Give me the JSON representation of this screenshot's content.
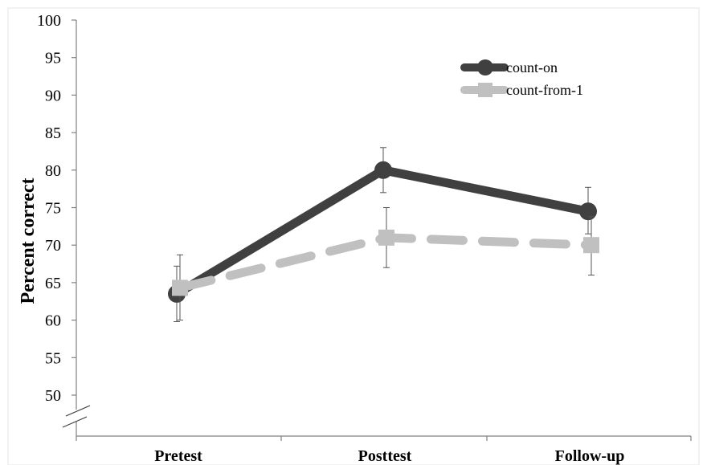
{
  "chart_data": {
    "type": "line",
    "title": "",
    "xlabel": "",
    "ylabel": "Percent correct",
    "categories": [
      "Pretest",
      "Posttest",
      "Follow-up"
    ],
    "ylim": [
      50,
      100
    ],
    "yticks": [
      "50",
      "55",
      "60",
      "65",
      "70",
      "75",
      "80",
      "85",
      "90",
      "95",
      "100"
    ],
    "axis_break": true,
    "grid": false,
    "legend_position": "top-right",
    "series": [
      {
        "name": "count-on",
        "values": [
          63.5,
          80,
          74.5
        ],
        "error_low": [
          59.8,
          77,
          71.5
        ],
        "error_high": [
          67.2,
          83,
          77.7
        ],
        "color": "#404040",
        "line_style": "solid",
        "marker": "circle"
      },
      {
        "name": "count-from-1",
        "values": [
          64.3,
          71,
          70
        ],
        "error_low": [
          60,
          67,
          66
        ],
        "error_high": [
          68.7,
          75,
          73.8
        ],
        "color": "#c0c0c0",
        "line_style": "dashed",
        "marker": "square"
      }
    ]
  }
}
